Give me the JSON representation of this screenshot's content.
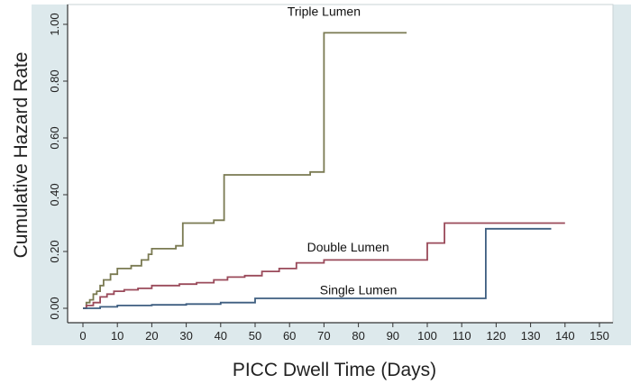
{
  "chart_data": {
    "type": "line",
    "step": true,
    "xlabel": "PICC Dwell Time (Days)",
    "ylabel": "Cumulative Hazard Rate",
    "xlim": [
      0,
      150
    ],
    "ylim": [
      0,
      1
    ],
    "xticks": [
      0,
      10,
      20,
      30,
      40,
      50,
      60,
      70,
      80,
      90,
      100,
      110,
      120,
      130,
      140,
      150
    ],
    "yticks": [
      0,
      0.2,
      0.4,
      0.6,
      0.8,
      1.0
    ],
    "ytick_labels": [
      "0.00",
      "0.20",
      "0.40",
      "0.60",
      "0.80",
      "1.00"
    ],
    "grid": false,
    "colors": {
      "frame_bg": "#dde9ec",
      "plot_bg": "#ffffff",
      "axis": "#333333"
    },
    "series": [
      {
        "name": "Triple Lumen",
        "color": "#7a7a52",
        "x": [
          0,
          1,
          2,
          3,
          4,
          5,
          6,
          8,
          10,
          14,
          17,
          19,
          20,
          27,
          29,
          38,
          41,
          66,
          70,
          94
        ],
        "y": [
          0,
          0.02,
          0.03,
          0.05,
          0.06,
          0.08,
          0.1,
          0.12,
          0.14,
          0.15,
          0.17,
          0.19,
          0.21,
          0.22,
          0.3,
          0.31,
          0.47,
          0.48,
          0.97,
          0.97
        ]
      },
      {
        "name": "Double Lumen",
        "color": "#9a4a5a",
        "x": [
          0,
          1,
          3,
          5,
          7,
          9,
          12,
          16,
          20,
          28,
          33,
          38,
          42,
          47,
          52,
          57,
          62,
          70,
          80,
          90,
          97,
          100,
          105,
          116,
          140
        ],
        "y": [
          0,
          0.01,
          0.02,
          0.04,
          0.05,
          0.06,
          0.065,
          0.07,
          0.08,
          0.085,
          0.09,
          0.1,
          0.11,
          0.115,
          0.13,
          0.14,
          0.16,
          0.17,
          0.17,
          0.17,
          0.17,
          0.23,
          0.3,
          0.3,
          0.3
        ]
      },
      {
        "name": "Single Lumen",
        "color": "#3e5e80",
        "x": [
          0,
          5,
          10,
          20,
          30,
          40,
          50,
          60,
          70,
          80,
          90,
          100,
          110,
          117,
          136
        ],
        "y": [
          0,
          0.005,
          0.01,
          0.012,
          0.015,
          0.02,
          0.035,
          0.035,
          0.035,
          0.035,
          0.035,
          0.035,
          0.035,
          0.28,
          0.28
        ]
      }
    ],
    "annotations": [
      {
        "text": "Triple Lumen",
        "x": 70,
        "y": 1.03
      },
      {
        "text": "Double Lumen",
        "x": 77,
        "y": 0.2
      },
      {
        "text": "Single Lumen",
        "x": 80,
        "y": 0.05
      }
    ]
  }
}
